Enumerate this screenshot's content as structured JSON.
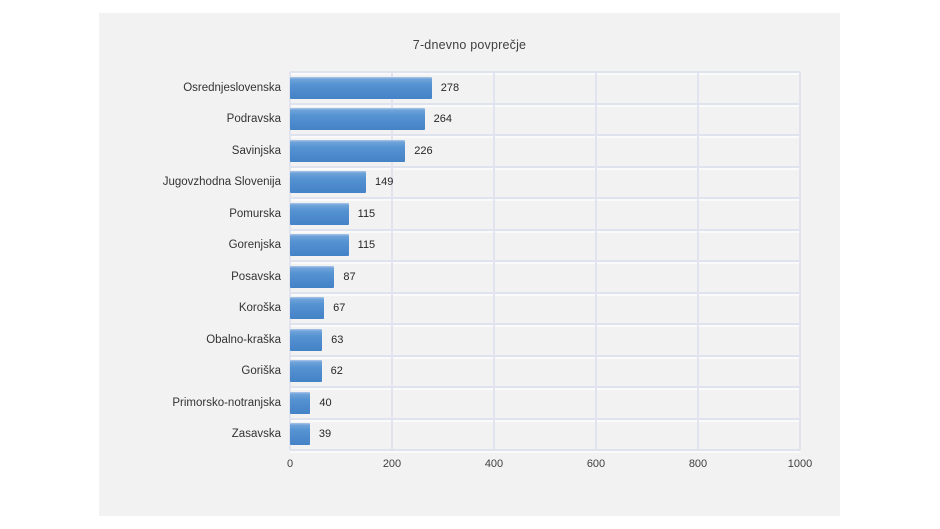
{
  "page": {
    "background_color": "#ffffff",
    "panel_background_color": "#f2f2f2"
  },
  "chart_data": {
    "type": "bar",
    "orientation": "horizontal",
    "title": "7-dnevno povprečje",
    "categories": [
      "Osrednjeslovenska",
      "Podravska",
      "Savinjska",
      "Jugovzhodna Slovenija",
      "Pomurska",
      "Gorenjska",
      "Posavska",
      "Koroška",
      "Obalno-kraška",
      "Goriška",
      "Primorsko-notranjska",
      "Zasavska"
    ],
    "values": [
      278,
      264,
      226,
      149,
      115,
      115,
      87,
      67,
      63,
      62,
      40,
      39
    ],
    "data_labels": [
      278,
      264,
      226,
      149,
      115,
      115,
      87,
      67,
      63,
      62,
      40,
      39
    ],
    "x_ticks": [
      0,
      200,
      400,
      600,
      800,
      1000
    ],
    "xlim": [
      0,
      1000
    ],
    "xlabel": "",
    "ylabel": "",
    "grid": true,
    "legend": false,
    "colors": {
      "bar_gradient_top": "#6ea3d9",
      "bar_gradient_bottom": "#4482c7",
      "gridline": "#dfe3ee",
      "title_text": "#404040",
      "category_text": "#333333",
      "value_text": "#262626",
      "tick_text": "#404040"
    }
  }
}
